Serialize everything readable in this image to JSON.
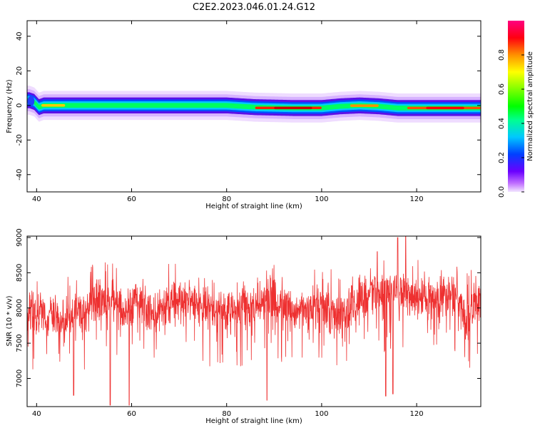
{
  "figure": {
    "title": "C2E2.2023.046.01.24.G12"
  },
  "chart_data": [
    {
      "type": "heatmap",
      "xlabel": "Height of straight line (km)",
      "ylabel": "Frequency (Hz)",
      "xlim": [
        38,
        133.5
      ],
      "ylim": [
        -50,
        49
      ],
      "xticks": [
        40,
        60,
        80,
        100,
        120
      ],
      "yticks": [
        -40,
        -20,
        0,
        20,
        40
      ],
      "grid": false,
      "colorbar": {
        "label": "Normalized spectral amplitude",
        "range": [
          0,
          1
        ],
        "ticks": [
          0.0,
          0.2,
          0.4,
          0.6,
          0.8
        ],
        "colormap": "gist_rainbow-like (violet → blue → cyan → green → yellow → orange → red → magenta)"
      },
      "ridge": {
        "description": "narrow band of high amplitude centered near 0 Hz across the full height range",
        "center_hz": [
          [
            38.5,
            3
          ],
          [
            39.5,
            2
          ],
          [
            40.5,
            -1
          ],
          [
            41.5,
            0
          ],
          [
            45,
            0
          ],
          [
            60,
            0
          ],
          [
            80,
            0
          ],
          [
            86,
            -1
          ],
          [
            94,
            -1.5
          ],
          [
            100,
            -1.5
          ],
          [
            104,
            -0.5
          ],
          [
            108,
            0
          ],
          [
            112,
            -0.5
          ],
          [
            116,
            -1.5
          ],
          [
            124,
            -1.5
          ],
          [
            133.5,
            -1.5
          ]
        ],
        "halfwidth_hz": 4
      }
    },
    {
      "type": "line",
      "xlabel": "Height of straight line (km)",
      "ylabel": "SNR (10 * v/v)",
      "xlim": [
        38,
        133.5
      ],
      "ylim": [
        6600,
        9020
      ],
      "xticks": [
        40,
        60,
        80,
        100,
        120
      ],
      "yticks": [
        7000,
        7500,
        8000,
        8500,
        9000
      ],
      "grid": false,
      "series": [
        {
          "color": "#ee3030",
          "x_start": 38,
          "x_end": 133.5,
          "baseline": [
            [
              38,
              7900
            ],
            [
              42,
              7950
            ],
            [
              46,
              7850
            ],
            [
              50,
              7900
            ],
            [
              53,
              8150
            ],
            [
              56,
              8100
            ],
            [
              58,
              7950
            ],
            [
              61,
              8100
            ],
            [
              64,
              7900
            ],
            [
              68,
              8050
            ],
            [
              71,
              8100
            ],
            [
              76,
              8000
            ],
            [
              80,
              7950
            ],
            [
              84,
              8000
            ],
            [
              89,
              8150
            ],
            [
              92,
              8000
            ],
            [
              96,
              7950
            ],
            [
              100,
              8050
            ],
            [
              104,
              7900
            ],
            [
              108,
              8100
            ],
            [
              112,
              8200
            ],
            [
              116,
              8250
            ],
            [
              120,
              8150
            ],
            [
              124,
              8150
            ],
            [
              128,
              8200
            ],
            [
              130,
              7900
            ],
            [
              133.5,
              8100
            ]
          ],
          "spread": 420,
          "notable_minima": [
            [
              47.8,
              6760
            ],
            [
              55.5,
              6620
            ],
            [
              59.5,
              6620
            ],
            [
              88.5,
              6690
            ],
            [
              113.5,
              6750
            ],
            [
              115,
              6780
            ]
          ],
          "notable_maxima": [
            [
              116,
              9000
            ],
            [
              117.7,
              9020
            ],
            [
              111.7,
              8800
            ]
          ]
        }
      ]
    }
  ]
}
